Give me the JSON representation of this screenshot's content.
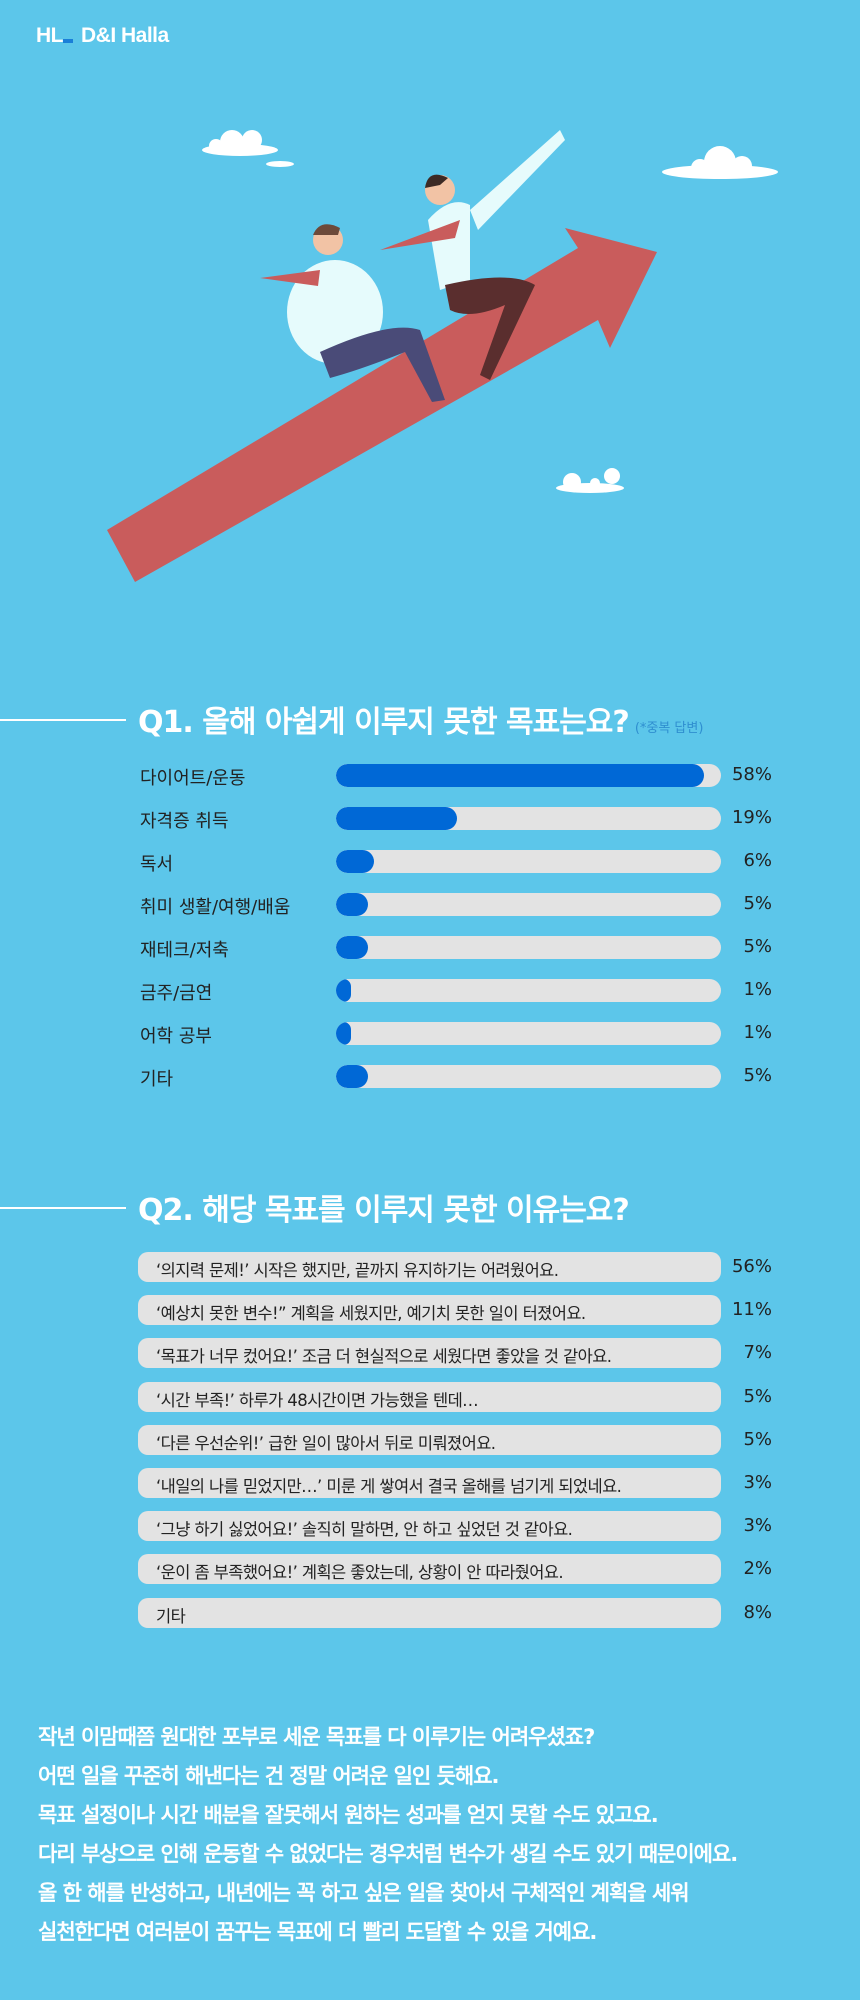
{
  "logo": {
    "mark": "HL",
    "name": "D&I Halla"
  },
  "colors": {
    "background": "#5cc6ea",
    "bar_fill": "#0068d6",
    "bar_track": "#e3e3e3",
    "arrow": "#c95c5c"
  },
  "q1": {
    "title": "Q1. 올해 아쉽게 이루지 못한 목표는요?",
    "note": "(*중복 답변)",
    "items": [
      {
        "label": "다이어트/운동",
        "percent": 58,
        "value_label": "58%"
      },
      {
        "label": "자격증 취득",
        "percent": 19,
        "value_label": "19%"
      },
      {
        "label": "독서",
        "percent": 6,
        "value_label": "6%"
      },
      {
        "label": "취미 생활/여행/배움",
        "percent": 5,
        "value_label": "5%"
      },
      {
        "label": "재테크/저축",
        "percent": 5,
        "value_label": "5%"
      },
      {
        "label": "금주/금연",
        "percent": 1,
        "value_label": "1%"
      },
      {
        "label": "어학 공부",
        "percent": 1,
        "value_label": "1%"
      },
      {
        "label": "기타",
        "percent": 5,
        "value_label": "5%"
      }
    ]
  },
  "q2": {
    "title": "Q2. 해당 목표를 이루지 못한 이유는요?",
    "items": [
      {
        "label": "‘의지력 문제!’ 시작은 했지만, 끝까지 유지하기는 어려웠어요.",
        "value_label": "56%"
      },
      {
        "label": "‘예상치 못한 변수!” 계획을 세웠지만, 예기치 못한 일이 터졌어요.",
        "value_label": "11%"
      },
      {
        "label": "‘목표가 너무 컸어요!’ 조금 더 현실적으로 세웠다면 좋았을 것 같아요.",
        "value_label": "7%"
      },
      {
        "label": "‘시간 부족!’ 하루가 48시간이면 가능했을 텐데…",
        "value_label": "5%"
      },
      {
        "label": "‘다른 우선순위!’ 급한 일이 많아서 뒤로 미뤄졌어요.",
        "value_label": "5%"
      },
      {
        "label": "‘내일의 나를 믿었지만…’ 미룬 게 쌓여서 결국 올해를 넘기게 되었네요.",
        "value_label": "3%"
      },
      {
        "label": "‘그냥 하기 싫었어요!’ 솔직히 말하면, 안 하고 싶었던 것 같아요.",
        "value_label": "3%"
      },
      {
        "label": "‘운이 좀 부족했어요!’ 계획은 좋았는데, 상황이 안 따라줬어요.",
        "value_label": "2%"
      },
      {
        "label": "기타",
        "value_label": "8%"
      }
    ]
  },
  "closing": [
    "작년 이맘때쯤 원대한 포부로 세운 목표를 다 이루기는 어려우셨죠?",
    "어떤 일을 꾸준히 해낸다는 건 정말 어려운 일인 듯해요.",
    "목표 설정이나 시간 배분을 잘못해서 원하는 성과를 얻지 못할 수도 있고요.",
    "다리 부상으로 인해 운동할 수 없었다는 경우처럼 변수가 생길 수도 있기 때문이에요.",
    "올 한 해를 반성하고, 내년에는 꼭 하고 싶은 일을 찾아서  구체적인 계획을 세워",
    "실천한다면 여러분이 꿈꾸는 목표에 더 빨리 도달할 수 있을 거예요."
  ]
}
